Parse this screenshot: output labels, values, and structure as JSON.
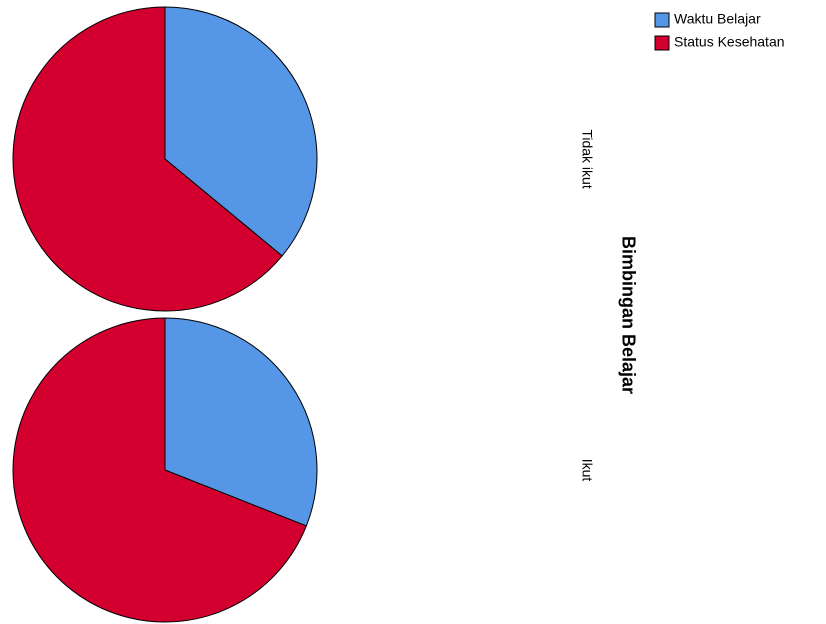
{
  "chart_data": {
    "type": "pie",
    "panel_title": "Bimbingan Belajar",
    "categories": [
      "Waktu Belajar",
      "Status Kesehatan"
    ],
    "colors": [
      "#5596e6",
      "#d3002f"
    ],
    "panels": [
      {
        "label": "Tidak ikut",
        "values": [
          36,
          64
        ]
      },
      {
        "label": "Ikut",
        "values": [
          31,
          69
        ]
      }
    ]
  }
}
